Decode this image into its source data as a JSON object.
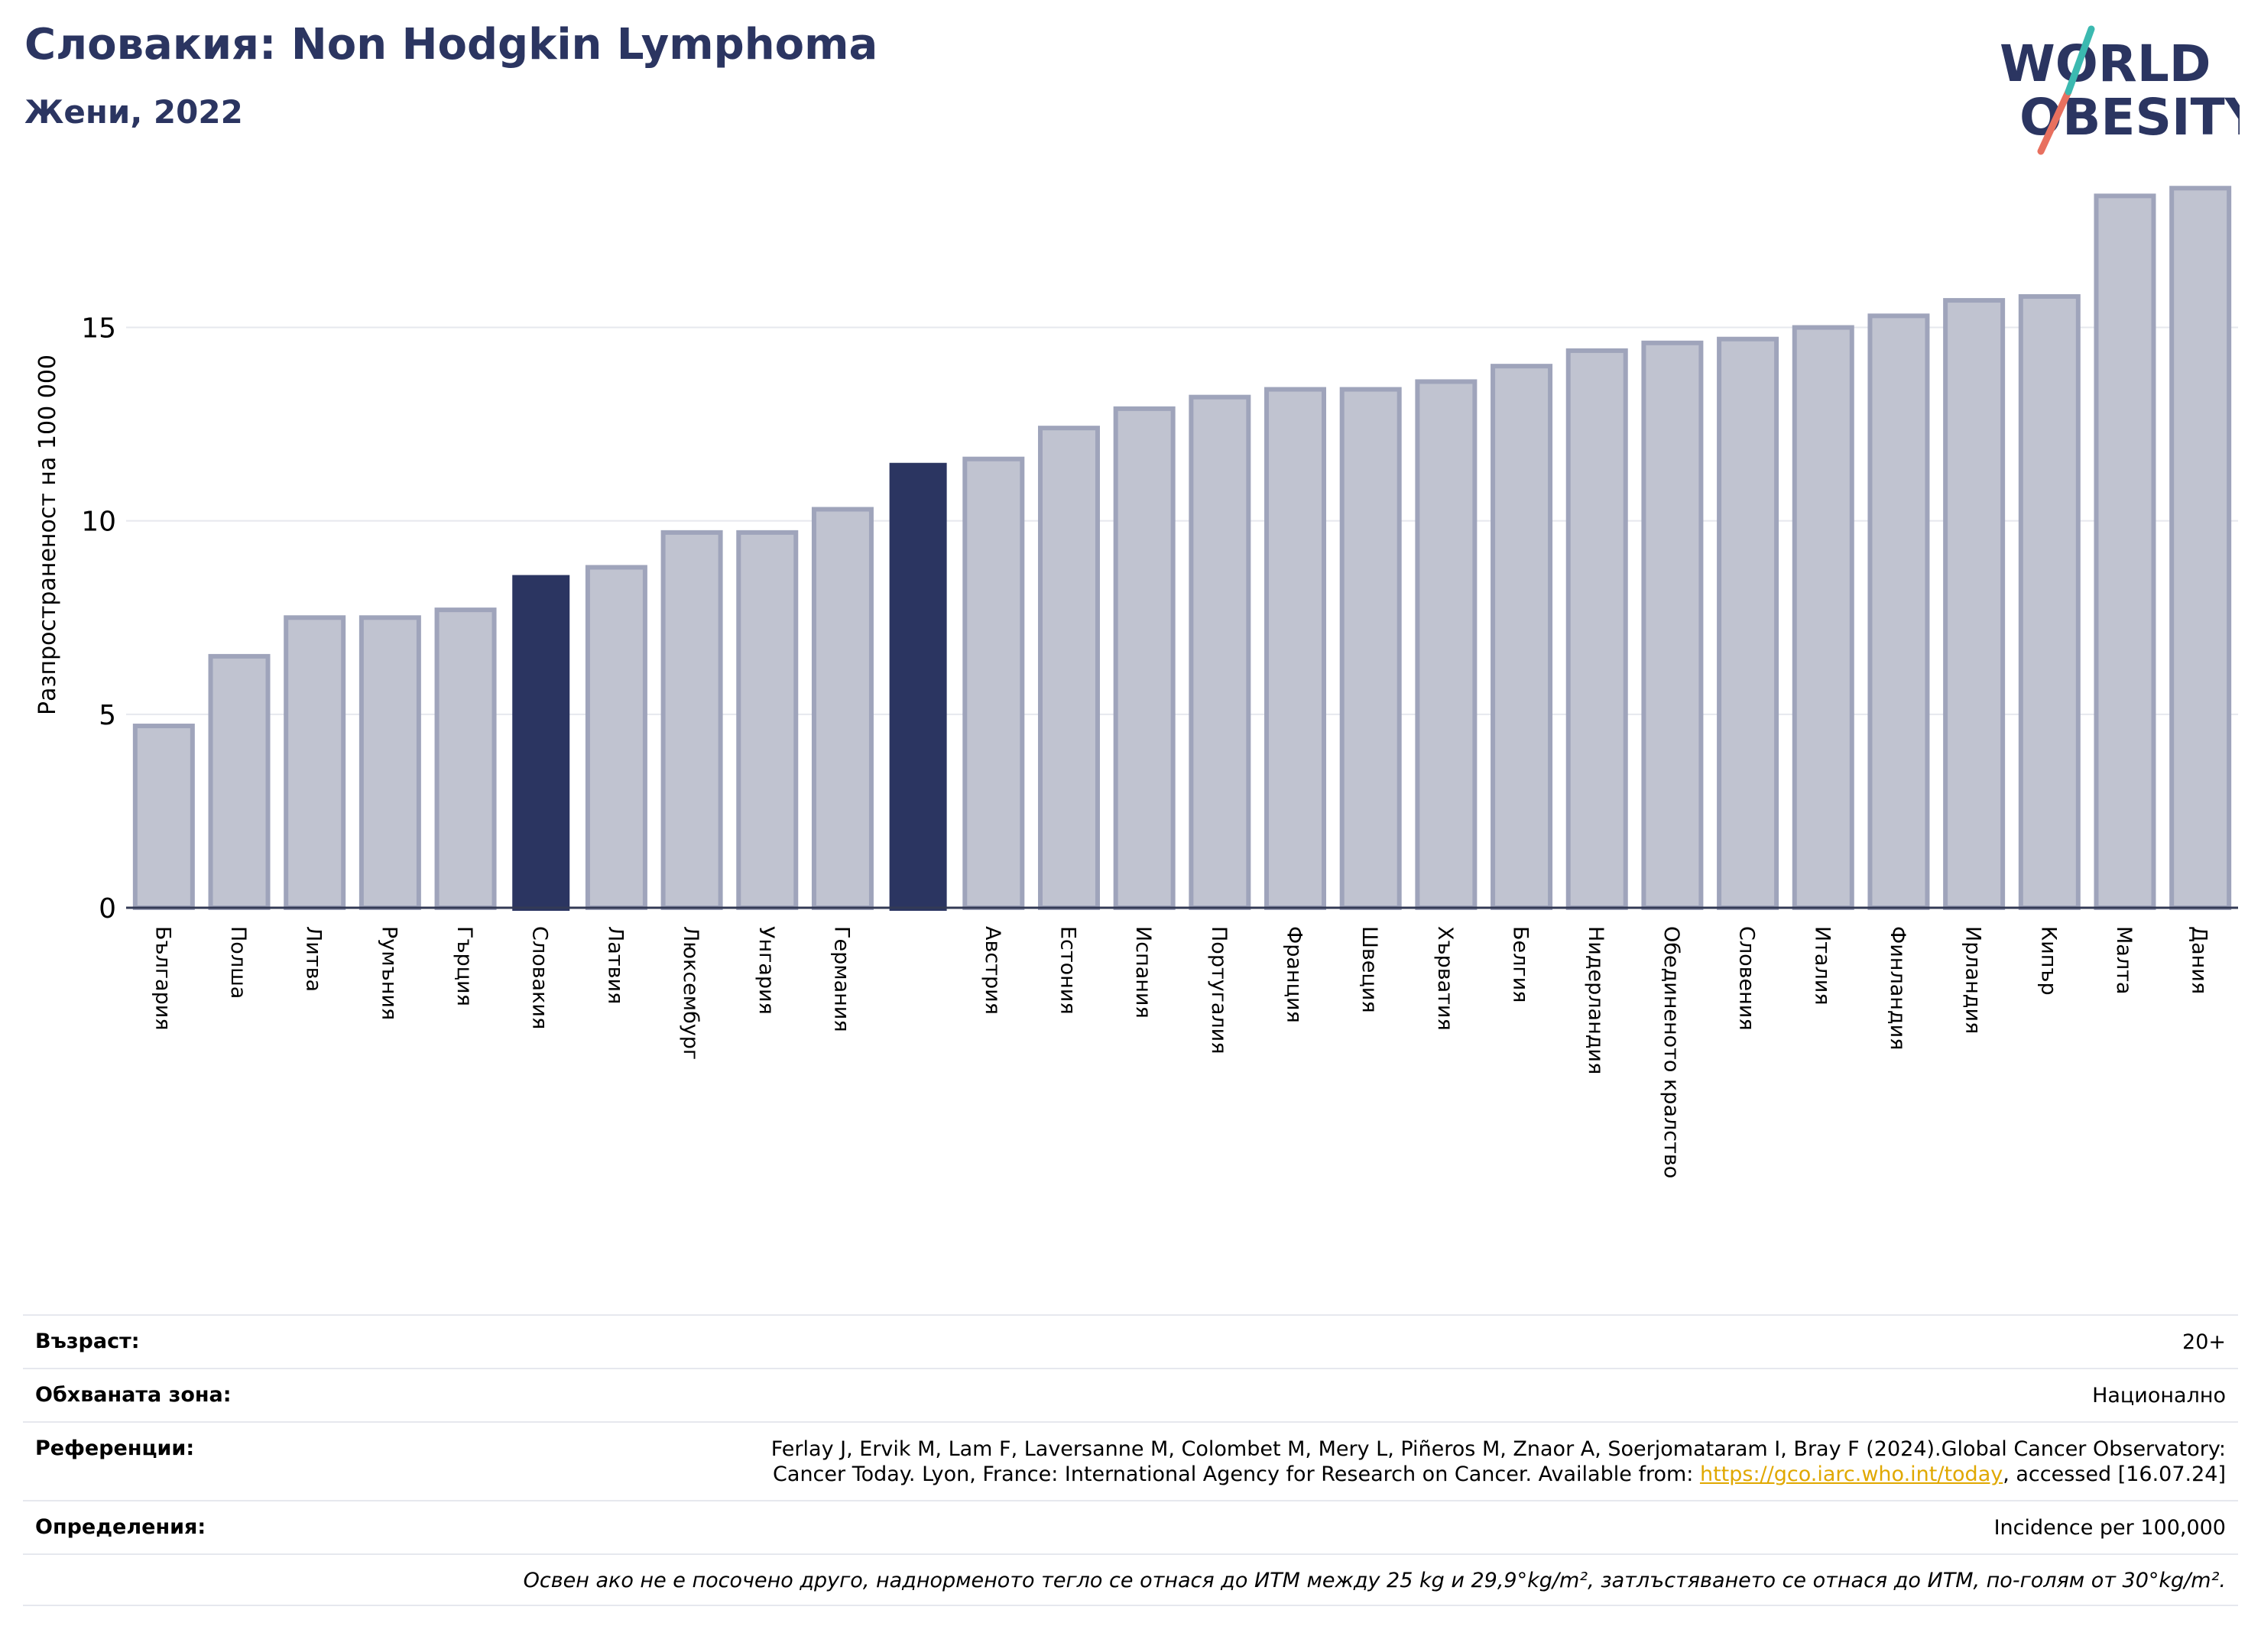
{
  "header": {
    "title": "Словакия: Non Hodgkin Lymphoma",
    "subtitle": "Жени, 2022"
  },
  "logo": {
    "line1": "WORLD",
    "line2": "OBESITY"
  },
  "chart_data": {
    "type": "bar",
    "ylabel": "Разпространеност  на 100 000",
    "xlabel": "",
    "ylim": [
      0,
      19
    ],
    "yticks": [
      0,
      5,
      10,
      15
    ],
    "grid": true,
    "categories": [
      "България",
      "Полша",
      "Литва",
      "Румъния",
      "Гърция",
      "Словакия",
      "Латвия",
      "Люксембург",
      "Унгария",
      "Германия",
      "",
      "Австрия",
      "Естония",
      "Испания",
      "Португалия",
      "Франция",
      "Швеция",
      "Хърватия",
      "Белгия",
      "Нидерландия",
      "Обединеното кралство",
      "Словения",
      "Италия",
      "Финландия",
      "Ирландия",
      "Кипър",
      "Малта",
      "Дания"
    ],
    "values": [
      4.7,
      6.5,
      7.5,
      7.5,
      7.7,
      8.6,
      8.8,
      9.7,
      9.7,
      10.3,
      11.5,
      11.6,
      12.4,
      12.9,
      13.2,
      13.4,
      13.4,
      13.6,
      14.0,
      14.4,
      14.6,
      14.7,
      15.0,
      15.3,
      15.7,
      15.8,
      18.4,
      18.6
    ],
    "highlight": [
      5,
      10
    ],
    "colors": {
      "bar": "#c0c3d0",
      "bar_edge": "#9fa4bb",
      "highlight": "#2b3561",
      "grid": "#e6e8ee",
      "axis": "#333a55"
    }
  },
  "meta": {
    "age_label": "Възраст:",
    "age_value": "20+",
    "area_label": "Обхваната зона:",
    "area_value": "Национално",
    "ref_label": "Референции:",
    "ref_text_1": "Ferlay J, Ervik M, Lam F, Laversanne M, Colombet M, Mery L, Piñeros M, Znaor A, Soerjomataram I, Bray F (2024).Global Cancer Observatory:",
    "ref_text_2": "Cancer Today. Lyon, France: International Agency for Research on Cancer. Available from: ",
    "ref_link": "https://gco.iarc.who.int/today",
    "ref_text_3": ", accessed [16.07.24]",
    "def_label": "Определения:",
    "def_value": "Incidence per 100,000",
    "note": "Освен ако не е посочено друго, наднорменото тегло се отнася до ИТМ между 25 kg и 29,9°kg/m², затлъстяването се отнася до ИТМ, по-голям от 30°kg/m²."
  }
}
